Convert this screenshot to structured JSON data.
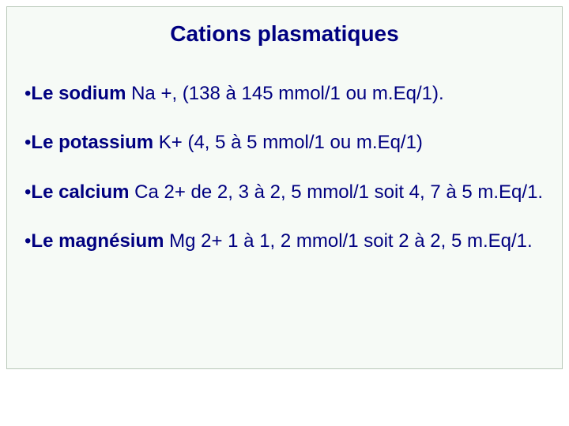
{
  "colors": {
    "text": "#000080",
    "slide_bg": "#f6faf6",
    "slide_border": "#b8c8b8",
    "page_bg": "#ffffff"
  },
  "typography": {
    "title_font": "Comic Sans MS",
    "title_size_pt": 28,
    "title_weight": "bold",
    "body_font": "Arial",
    "body_size_pt": 24
  },
  "title": "Cations plasmatiques",
  "bullet_glyph": "•",
  "items": [
    {
      "label": "Le sodium",
      "desc": " Na +, (138 à 145 mmol/1 ou m.Eq/1)."
    },
    {
      "label": "Le potassium",
      "desc": " K+ (4, 5 à 5 mmol/1 ou m.Eq/1)"
    },
    {
      "label": "Le calcium",
      "desc": " Ca 2+ de 2, 3 à 2, 5 mmol/1 soit 4, 7 à 5 m.Eq/1."
    },
    {
      "label": "Le magnésium",
      "desc": " Mg 2+ 1 à 1, 2 mmol/1 soit 2 à 2, 5 m.Eq/1."
    }
  ]
}
